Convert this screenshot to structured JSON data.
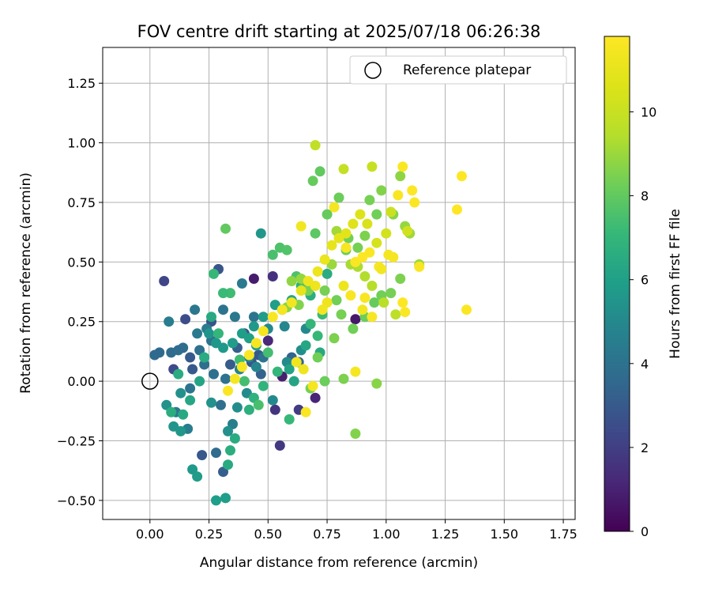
{
  "chart_data": {
    "type": "scatter",
    "title": "FOV centre drift starting at 2025/07/18 06:26:38",
    "xlabel": "Angular distance from reference (arcmin)",
    "ylabel": "Rotation from reference (arcmin)",
    "xlim": [
      -0.2,
      1.8
    ],
    "ylim": [
      -0.58,
      1.4
    ],
    "xticks": [
      "0.00",
      "0.25",
      "0.50",
      "0.75",
      "1.00",
      "1.25",
      "1.50",
      "1.75"
    ],
    "yticks": [
      "−0.50",
      "−0.25",
      "0.00",
      "0.25",
      "0.50",
      "0.75",
      "1.00",
      "1.25"
    ],
    "grid": true,
    "legend": {
      "position": "top-right",
      "entries": [
        "Reference platepar"
      ]
    },
    "colorbar": {
      "label": "Hours from first FF file",
      "min": 0,
      "max": 11.8,
      "ticks": [
        "0",
        "2",
        "4",
        "6",
        "8",
        "10"
      ],
      "colormap": "viridis"
    },
    "reference_point": {
      "x": 0.0,
      "y": 0.0
    },
    "series": [
      {
        "points": [
          [
            0.44,
            0.43,
            0.8
          ],
          [
            0.56,
            0.02,
            0.9
          ],
          [
            0.87,
            0.26,
            0.7
          ],
          [
            0.5,
            0.17,
            1.2
          ],
          [
            0.7,
            -0.07,
            1.1
          ],
          [
            0.52,
            0.44,
            1.5
          ],
          [
            0.55,
            -0.27,
            1.8
          ],
          [
            0.53,
            -0.12,
            1.6
          ],
          [
            0.63,
            -0.12,
            1.9
          ],
          [
            0.06,
            0.42,
            2.2
          ],
          [
            0.1,
            0.05,
            2.4
          ],
          [
            0.15,
            0.26,
            2.5
          ],
          [
            0.26,
            0.25,
            2.7
          ],
          [
            0.29,
            0.47,
            2.8
          ],
          [
            0.22,
            -0.31,
            2.9
          ],
          [
            0.18,
            0.05,
            3.0
          ],
          [
            0.34,
            0.07,
            3.1
          ],
          [
            0.37,
            0.14,
            3.2
          ],
          [
            0.47,
            0.03,
            3.3
          ],
          [
            0.6,
            0.1,
            3.4
          ],
          [
            0.63,
            0.08,
            3.5
          ],
          [
            0.31,
            -0.38,
            3.2
          ],
          [
            0.17,
            0.1,
            3.0
          ],
          [
            0.4,
            0.2,
            2.6
          ],
          [
            0.43,
            0.08,
            2.8
          ],
          [
            0.46,
            0.11,
            3.0
          ],
          [
            0.04,
            0.12,
            3.6
          ],
          [
            0.09,
            0.12,
            3.7
          ],
          [
            0.12,
            0.13,
            3.8
          ],
          [
            0.21,
            0.13,
            3.9
          ],
          [
            0.26,
            0.17,
            4.0
          ],
          [
            0.31,
            0.3,
            4.1
          ],
          [
            0.36,
            0.27,
            4.2
          ],
          [
            0.39,
            0.41,
            4.3
          ],
          [
            0.44,
            0.27,
            4.1
          ],
          [
            0.48,
            0.1,
            4.0
          ],
          [
            0.27,
            0.03,
            3.9
          ],
          [
            0.23,
            0.07,
            3.8
          ],
          [
            0.14,
            0.14,
            3.7
          ],
          [
            0.02,
            0.11,
            3.6
          ],
          [
            0.28,
            -0.3,
            3.7
          ],
          [
            0.3,
            -0.1,
            3.9
          ],
          [
            0.32,
            0.01,
            4.0
          ],
          [
            0.17,
            -0.03,
            4.1
          ],
          [
            0.19,
            0.3,
            4.2
          ],
          [
            0.2,
            0.2,
            4.3
          ],
          [
            0.24,
            0.22,
            4.4
          ],
          [
            0.08,
            0.25,
            4.5
          ],
          [
            0.11,
            -0.13,
            4.3
          ],
          [
            0.16,
            -0.2,
            4.5
          ],
          [
            0.35,
            -0.18,
            4.6
          ],
          [
            0.38,
            0.05,
            4.7
          ],
          [
            0.42,
            0.1,
            4.8
          ],
          [
            0.45,
            0.06,
            4.9
          ],
          [
            0.5,
            0.22,
            5.0
          ],
          [
            0.58,
            0.08,
            5.1
          ],
          [
            0.64,
            0.13,
            5.2
          ],
          [
            0.66,
            0.22,
            5.0
          ],
          [
            0.57,
            0.23,
            4.9
          ],
          [
            0.52,
            -0.08,
            5.0
          ],
          [
            0.41,
            -0.05,
            5.1
          ],
          [
            0.37,
            -0.11,
            5.2
          ],
          [
            0.33,
            -0.21,
            5.3
          ],
          [
            0.26,
            -0.09,
            5.4
          ],
          [
            0.13,
            -0.05,
            5.3
          ],
          [
            0.07,
            -0.1,
            5.4
          ],
          [
            0.1,
            -0.19,
            5.5
          ],
          [
            0.13,
            -0.21,
            5.6
          ],
          [
            0.18,
            -0.37,
            5.7
          ],
          [
            0.2,
            -0.4,
            5.8
          ],
          [
            0.28,
            -0.5,
            5.9
          ],
          [
            0.32,
            -0.49,
            5.9
          ],
          [
            0.25,
            0.2,
            5.5
          ],
          [
            0.28,
            0.16,
            5.6
          ],
          [
            0.31,
            0.14,
            5.7
          ],
          [
            0.35,
            0.16,
            5.8
          ],
          [
            0.39,
            0.2,
            5.9
          ],
          [
            0.42,
            0.18,
            6.0
          ],
          [
            0.45,
            0.15,
            6.1
          ],
          [
            0.47,
            0.62,
            5.6
          ],
          [
            0.44,
            0.23,
            5.7
          ],
          [
            0.48,
            0.27,
            5.8
          ],
          [
            0.53,
            0.32,
            5.9
          ],
          [
            0.56,
            0.3,
            6.0
          ],
          [
            0.59,
            0.05,
            6.1
          ],
          [
            0.61,
            0.0,
            6.2
          ],
          [
            0.66,
            0.15,
            6.3
          ],
          [
            0.72,
            0.12,
            6.4
          ],
          [
            0.75,
            0.45,
            6.5
          ],
          [
            0.68,
            0.36,
            6.6
          ],
          [
            0.64,
            0.4,
            6.7
          ],
          [
            0.6,
            0.34,
            6.3
          ],
          [
            0.26,
            0.27,
            6.4
          ],
          [
            0.23,
            0.1,
            6.5
          ],
          [
            0.21,
            0.0,
            6.2
          ],
          [
            0.17,
            -0.08,
            6.3
          ],
          [
            0.14,
            -0.14,
            6.4
          ],
          [
            0.12,
            0.03,
            6.5
          ],
          [
            0.09,
            -0.13,
            6.6
          ],
          [
            0.33,
            -0.35,
            6.4
          ],
          [
            0.36,
            -0.24,
            6.5
          ],
          [
            0.34,
            -0.29,
            6.6
          ],
          [
            0.42,
            -0.12,
            6.7
          ],
          [
            0.44,
            -0.07,
            6.8
          ],
          [
            0.48,
            -0.02,
            6.9
          ],
          [
            0.54,
            0.04,
            7.0
          ],
          [
            0.59,
            -0.16,
            7.1
          ],
          [
            0.68,
            0.24,
            7.0
          ],
          [
            0.71,
            0.19,
            7.1
          ],
          [
            0.73,
            0.28,
            7.2
          ],
          [
            0.34,
            0.37,
            7.3
          ],
          [
            0.31,
            0.37,
            7.2
          ],
          [
            0.27,
            0.45,
            7.1
          ],
          [
            0.29,
            0.2,
            7.0
          ],
          [
            0.38,
            0.09,
            7.3
          ],
          [
            0.4,
            0.0,
            7.4
          ],
          [
            0.46,
            -0.1,
            7.5
          ],
          [
            0.5,
            0.12,
            7.4
          ],
          [
            0.52,
            0.53,
            7.5
          ],
          [
            0.55,
            0.56,
            7.6
          ],
          [
            0.58,
            0.55,
            7.7
          ],
          [
            0.62,
            0.44,
            7.6
          ],
          [
            0.65,
            0.39,
            7.8
          ],
          [
            0.7,
            0.62,
            7.9
          ],
          [
            0.72,
            0.88,
            8.0
          ],
          [
            0.75,
            0.7,
            8.1
          ],
          [
            0.8,
            0.77,
            8.2
          ],
          [
            0.84,
            0.6,
            8.3
          ],
          [
            0.88,
            0.56,
            8.4
          ],
          [
            0.91,
            0.61,
            8.5
          ],
          [
            0.93,
            0.76,
            8.4
          ],
          [
            0.96,
            0.7,
            8.3
          ],
          [
            0.98,
            0.8,
            8.6
          ],
          [
            1.03,
            0.7,
            8.7
          ],
          [
            1.06,
            0.86,
            8.8
          ],
          [
            1.08,
            0.65,
            8.9
          ],
          [
            1.1,
            0.62,
            9.0
          ],
          [
            1.14,
            0.49,
            9.0
          ],
          [
            1.06,
            0.43,
            8.5
          ],
          [
            1.02,
            0.37,
            8.4
          ],
          [
            0.98,
            0.36,
            8.3
          ],
          [
            0.95,
            0.33,
            8.1
          ],
          [
            0.91,
            0.27,
            8.2
          ],
          [
            0.86,
            0.22,
            8.3
          ],
          [
            0.81,
            0.28,
            8.4
          ],
          [
            0.78,
            0.18,
            8.5
          ],
          [
            0.74,
            0.0,
            8.2
          ],
          [
            0.71,
            0.1,
            8.3
          ],
          [
            0.68,
            -0.03,
            8.4
          ],
          [
            0.82,
            0.01,
            8.5
          ],
          [
            0.87,
            -0.22,
            8.6
          ],
          [
            0.96,
            -0.01,
            8.7
          ],
          [
            0.32,
            0.64,
            8.0
          ],
          [
            0.69,
            0.84,
            8.1
          ],
          [
            0.83,
            0.55,
            8.2
          ],
          [
            0.79,
            0.34,
            8.3
          ],
          [
            0.74,
            0.38,
            8.4
          ],
          [
            0.67,
            0.38,
            8.5
          ],
          [
            0.63,
            0.32,
            8.6
          ],
          [
            0.58,
            0.31,
            8.7
          ],
          [
            0.6,
            0.42,
            8.8
          ],
          [
            0.64,
            0.43,
            8.9
          ],
          [
            0.77,
            0.49,
            9.0
          ],
          [
            0.79,
            0.63,
            9.1
          ],
          [
            0.85,
            0.49,
            9.2
          ],
          [
            0.88,
            0.48,
            9.3
          ],
          [
            0.91,
            0.44,
            9.4
          ],
          [
            0.94,
            0.4,
            9.5
          ],
          [
            0.99,
            0.33,
            9.6
          ],
          [
            1.04,
            0.28,
            9.7
          ],
          [
            0.7,
            0.99,
            9.8
          ],
          [
            0.82,
            0.89,
            9.9
          ],
          [
            0.94,
            0.9,
            10.0
          ],
          [
            1.02,
            0.71,
            10.1
          ],
          [
            1.09,
            0.63,
            10.2
          ],
          [
            1.0,
            0.62,
            10.3
          ],
          [
            0.96,
            0.58,
            10.4
          ],
          [
            0.92,
            0.66,
            10.5
          ],
          [
            0.89,
            0.7,
            10.6
          ],
          [
            0.86,
            0.66,
            10.7
          ],
          [
            0.83,
            0.62,
            10.8
          ],
          [
            0.8,
            0.6,
            10.9
          ],
          [
            0.77,
            0.57,
            11.0
          ],
          [
            0.74,
            0.51,
            11.1
          ],
          [
            0.71,
            0.46,
            11.2
          ],
          [
            0.67,
            0.42,
            11.3
          ],
          [
            0.64,
            0.38,
            11.0
          ],
          [
            0.6,
            0.33,
            11.4
          ],
          [
            0.56,
            0.3,
            11.5
          ],
          [
            0.52,
            0.27,
            11.6
          ],
          [
            0.48,
            0.21,
            11.5
          ],
          [
            0.45,
            0.16,
            11.6
          ],
          [
            0.42,
            0.11,
            11.7
          ],
          [
            0.39,
            0.06,
            11.6
          ],
          [
            0.36,
            0.01,
            11.5
          ],
          [
            0.33,
            -0.04,
            11.7
          ],
          [
            0.62,
            0.08,
            11.4
          ],
          [
            0.65,
            0.05,
            11.3
          ],
          [
            0.69,
            -0.02,
            11.5
          ],
          [
            0.66,
            -0.13,
            11.6
          ],
          [
            0.64,
            0.65,
            11.4
          ],
          [
            0.78,
            0.73,
            11.5
          ],
          [
            0.83,
            0.56,
            11.6
          ],
          [
            0.87,
            0.5,
            11.7
          ],
          [
            0.9,
            0.52,
            11.8
          ],
          [
            0.93,
            0.54,
            11.7
          ],
          [
            0.97,
            0.48,
            11.6
          ],
          [
            1.01,
            0.53,
            11.5
          ],
          [
            1.05,
            0.78,
            11.6
          ],
          [
            1.07,
            0.9,
            11.7
          ],
          [
            1.11,
            0.8,
            11.8
          ],
          [
            1.12,
            0.75,
            11.7
          ],
          [
            1.14,
            0.48,
            11.6
          ],
          [
            1.08,
            0.29,
            11.7
          ],
          [
            1.07,
            0.33,
            11.8
          ],
          [
            0.87,
            0.04,
            11.5
          ],
          [
            0.91,
            0.35,
            11.6
          ],
          [
            0.98,
            0.47,
            11.4
          ],
          [
            1.03,
            0.52,
            11.5
          ],
          [
            1.3,
            0.72,
            11.8
          ],
          [
            1.32,
            0.86,
            11.8
          ],
          [
            1.34,
            0.3,
            11.7
          ],
          [
            0.94,
            0.27,
            11.6
          ],
          [
            0.9,
            0.3,
            11.4
          ],
          [
            0.85,
            0.36,
            11.6
          ],
          [
            0.82,
            0.4,
            11.2
          ],
          [
            0.75,
            0.33,
            11.3
          ],
          [
            0.73,
            0.3,
            11.4
          ],
          [
            0.7,
            0.4,
            11.2
          ]
        ]
      }
    ]
  }
}
